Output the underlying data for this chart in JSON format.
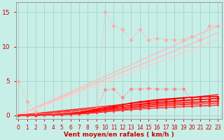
{
  "bg_color": "#c8eee8",
  "grid_color": "#a8d8cc",
  "xlabel": "Vent moyen/en rafales ( km/h )",
  "xlabel_color": "#cc0000",
  "tick_color": "#cc0000",
  "yticks": [
    0,
    5,
    10,
    15
  ],
  "xticks": [
    0,
    1,
    2,
    3,
    4,
    5,
    6,
    7,
    8,
    9,
    10,
    11,
    12,
    13,
    14,
    15,
    16,
    17,
    18,
    19,
    20,
    21,
    22,
    23
  ],
  "xlim": [
    -0.3,
    23.5
  ],
  "ylim": [
    -0.5,
    16.5
  ],
  "series": [
    {
      "x": [
        0,
        1,
        2,
        3,
        4,
        5,
        6,
        7,
        8,
        9,
        10,
        11,
        12,
        13,
        14,
        15,
        16,
        17,
        18,
        19,
        20,
        21,
        22,
        23
      ],
      "y": [
        5.0,
        2.0,
        0.5,
        0.1,
        0.2,
        0.3,
        0.4,
        0.5,
        0.6,
        0.8,
        15.0,
        13.0,
        12.5,
        11.0,
        12.5,
        11.0,
        11.2,
        11.0,
        11.0,
        11.0,
        11.5,
        11.0,
        13.0,
        13.0
      ],
      "color": "#ffaaaa",
      "lw": 0.8,
      "ls": "dotted",
      "marker": "D",
      "ms": 2.5,
      "zorder": 3
    },
    {
      "x": [
        0,
        23
      ],
      "y": [
        0,
        13.0
      ],
      "color": "#ffbbbb",
      "lw": 1.0,
      "ls": "solid",
      "marker": null,
      "ms": 0,
      "zorder": 2
    },
    {
      "x": [
        0,
        23
      ],
      "y": [
        0,
        12.0
      ],
      "color": "#ffbbbb",
      "lw": 1.0,
      "ls": "solid",
      "marker": null,
      "ms": 0,
      "zorder": 2
    },
    {
      "x": [
        0,
        23
      ],
      "y": [
        0,
        11.0
      ],
      "color": "#ffcccc",
      "lw": 1.0,
      "ls": "solid",
      "marker": null,
      "ms": 0,
      "zorder": 2
    },
    {
      "x": [
        0,
        1,
        2,
        3,
        4,
        5,
        6,
        7,
        8,
        9,
        10,
        11,
        12,
        13,
        14,
        15,
        16,
        17,
        18,
        19,
        20,
        21,
        22,
        23
      ],
      "y": [
        0.0,
        0.0,
        0.0,
        0.05,
        0.1,
        0.15,
        0.25,
        0.4,
        0.6,
        0.9,
        3.7,
        3.8,
        2.6,
        3.8,
        3.8,
        3.9,
        3.8,
        3.8,
        3.8,
        3.8,
        2.3,
        2.35,
        2.3,
        2.5
      ],
      "color": "#ff8888",
      "lw": 1.0,
      "ls": "dotted",
      "marker": "D",
      "ms": 2.5,
      "zorder": 4
    },
    {
      "x": [
        0,
        23
      ],
      "y": [
        0,
        3.0
      ],
      "color": "#ff2222",
      "lw": 1.0,
      "ls": "solid",
      "marker": null,
      "ms": 0,
      "zorder": 2
    },
    {
      "x": [
        0,
        23
      ],
      "y": [
        0,
        2.5
      ],
      "color": "#ff3333",
      "lw": 1.0,
      "ls": "solid",
      "marker": null,
      "ms": 0,
      "zorder": 2
    },
    {
      "x": [
        0,
        23
      ],
      "y": [
        0,
        2.0
      ],
      "color": "#ff4444",
      "lw": 0.9,
      "ls": "solid",
      "marker": null,
      "ms": 0,
      "zorder": 2
    },
    {
      "x": [
        0,
        23
      ],
      "y": [
        0,
        1.5
      ],
      "color": "#ff5555",
      "lw": 0.9,
      "ls": "solid",
      "marker": null,
      "ms": 0,
      "zorder": 2
    },
    {
      "x": [
        0,
        1,
        2,
        3,
        4,
        5,
        6,
        7,
        8,
        9,
        10,
        11,
        12,
        13,
        14,
        15,
        16,
        17,
        18,
        19,
        20,
        21,
        22,
        23
      ],
      "y": [
        0,
        0,
        0,
        0.05,
        0.1,
        0.15,
        0.25,
        0.4,
        0.6,
        0.85,
        1.1,
        1.3,
        1.55,
        1.75,
        1.95,
        2.1,
        2.25,
        2.35,
        2.45,
        2.55,
        2.6,
        2.65,
        2.7,
        2.75
      ],
      "color": "#ff0000",
      "lw": 1.2,
      "ls": "solid",
      "marker": "s",
      "ms": 2.0,
      "zorder": 5
    },
    {
      "x": [
        0,
        1,
        2,
        3,
        4,
        5,
        6,
        7,
        8,
        9,
        10,
        11,
        12,
        13,
        14,
        15,
        16,
        17,
        18,
        19,
        20,
        21,
        22,
        23
      ],
      "y": [
        0,
        0,
        0,
        0.04,
        0.08,
        0.12,
        0.2,
        0.32,
        0.48,
        0.68,
        0.9,
        1.08,
        1.28,
        1.45,
        1.62,
        1.75,
        1.88,
        1.98,
        2.08,
        2.18,
        2.25,
        2.3,
        2.35,
        2.45
      ],
      "color": "#ff0000",
      "lw": 1.0,
      "ls": "solid",
      "marker": "s",
      "ms": 1.8,
      "zorder": 5
    },
    {
      "x": [
        0,
        1,
        2,
        3,
        4,
        5,
        6,
        7,
        8,
        9,
        10,
        11,
        12,
        13,
        14,
        15,
        16,
        17,
        18,
        19,
        20,
        21,
        22,
        23
      ],
      "y": [
        0,
        0,
        0,
        0.03,
        0.06,
        0.1,
        0.16,
        0.26,
        0.4,
        0.56,
        0.74,
        0.9,
        1.06,
        1.2,
        1.35,
        1.46,
        1.58,
        1.67,
        1.76,
        1.84,
        1.91,
        1.96,
        2.01,
        2.12
      ],
      "color": "#ff1111",
      "lw": 1.0,
      "ls": "solid",
      "marker": "s",
      "ms": 1.6,
      "zorder": 5
    },
    {
      "x": [
        0,
        1,
        2,
        3,
        4,
        5,
        6,
        7,
        8,
        9,
        10,
        11,
        12,
        13,
        14,
        15,
        16,
        17,
        18,
        19,
        20,
        21,
        22,
        23
      ],
      "y": [
        0,
        0,
        0,
        0.02,
        0.05,
        0.08,
        0.13,
        0.21,
        0.32,
        0.46,
        0.61,
        0.74,
        0.87,
        0.99,
        1.11,
        1.2,
        1.3,
        1.38,
        1.46,
        1.53,
        1.59,
        1.64,
        1.69,
        1.78
      ],
      "color": "#ff2222",
      "lw": 0.9,
      "ls": "solid",
      "marker": "s",
      "ms": 1.5,
      "zorder": 5
    },
    {
      "x": [
        0,
        1,
        2,
        3,
        4,
        5,
        6,
        7,
        8,
        9,
        10,
        11,
        12,
        13,
        14,
        15,
        16,
        17,
        18,
        19,
        20,
        21,
        22,
        23
      ],
      "y": [
        0,
        0,
        0,
        0.01,
        0.03,
        0.06,
        0.1,
        0.16,
        0.24,
        0.35,
        0.48,
        0.59,
        0.7,
        0.8,
        0.9,
        0.98,
        1.06,
        1.13,
        1.19,
        1.25,
        1.31,
        1.35,
        1.39,
        1.47
      ],
      "color": "#ff3333",
      "lw": 0.9,
      "ls": "solid",
      "marker": "s",
      "ms": 1.4,
      "zorder": 5
    }
  ]
}
